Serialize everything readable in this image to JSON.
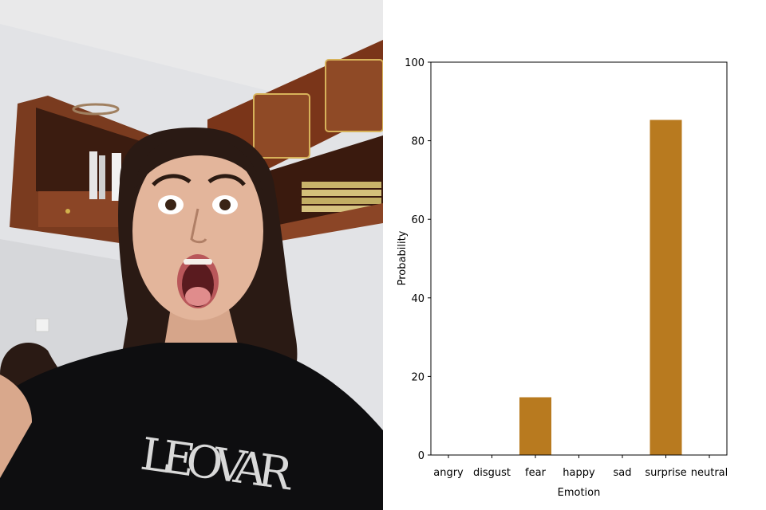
{
  "photo": {
    "subject": "selfie of a person with a surprised expression, open mouth, wide eyes, long curly dark hair, black t-shirt, wooden wall cabinets behind",
    "shirt_text": "LEOVAR"
  },
  "chart_data": {
    "type": "bar",
    "categories": [
      "angry",
      "disgust",
      "fear",
      "happy",
      "sad",
      "surprise",
      "neutral"
    ],
    "values": [
      0,
      0,
      14.7,
      0,
      0,
      85.3,
      0
    ],
    "title": "",
    "xlabel": "Emotion",
    "ylabel": "Probability",
    "ylim": [
      0,
      100
    ],
    "yticks": [
      0,
      20,
      40,
      60,
      80,
      100
    ],
    "grid": false,
    "bar_color": "#b87a1f"
  }
}
